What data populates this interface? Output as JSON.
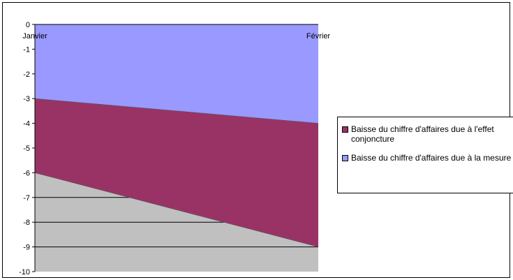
{
  "chart_data": {
    "type": "area",
    "categories": [
      "Janvier",
      "Février"
    ],
    "ylim": [
      -10,
      0
    ],
    "yticks": [
      0,
      -1,
      -2,
      -3,
      -4,
      -5,
      -6,
      -7,
      -8,
      -9,
      -10
    ],
    "grid": false,
    "legend_position": "right",
    "series": [
      {
        "name": "Baisse du chiffre d'affaires due à l'effet conjoncture",
        "lower": [
          -6,
          -9
        ],
        "upper": [
          -3,
          -4
        ],
        "color": "#993366"
      },
      {
        "name": "Baisse du chiffre d'affaires due à la mesure",
        "lower": [
          -3,
          -4
        ],
        "upper": [
          0,
          0
        ],
        "color": "#9999FF"
      }
    ],
    "background_fill_color": "#C0C0C0"
  },
  "legend": {
    "items": [
      {
        "label": "Baisse du chiffre d'affaires due à l'effet conjoncture",
        "color": "#993366"
      },
      {
        "label": "Baisse du chiffre d'affaires due à la mesure",
        "color": "#9999FF"
      }
    ]
  }
}
